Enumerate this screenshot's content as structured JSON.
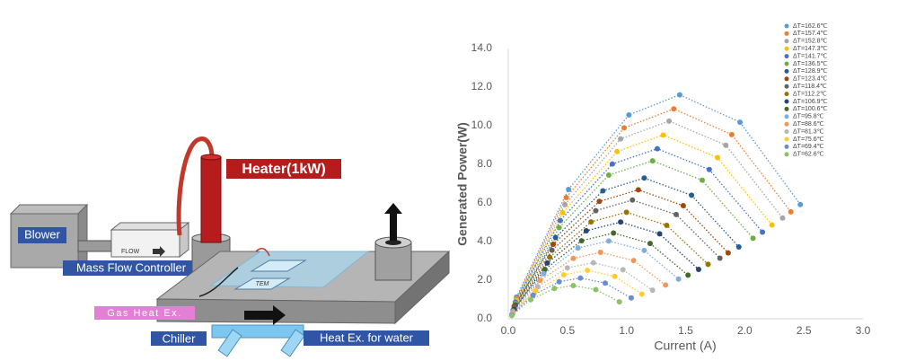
{
  "diagram": {
    "blower": "Blower",
    "flow": "FLOW",
    "heater": "Heater(1kW)",
    "mass_flow_controller": "Mass Flow Controller",
    "tem": "TEM",
    "gas_heat_ex": "Gas Heat Ex.",
    "chiller": "Chiller",
    "water_heat_ex": "Heat Ex. for water"
  },
  "chart_data": {
    "type": "scatter",
    "x_label": "Current (A)",
    "y_label": "Generated Power(W)",
    "xlim": [
      0,
      3
    ],
    "xticks": [
      {
        "value": 0,
        "label": "0.0"
      },
      0.5,
      {
        "value": 1,
        "label": "1.0"
      },
      1.5,
      {
        "value": 2,
        "label": "2.0"
      },
      2.5,
      {
        "value": 3,
        "label": "3.0"
      }
    ],
    "ylim": [
      0,
      14
    ],
    "yticks": [
      {
        "value": 0,
        "label": "0.0"
      },
      {
        "value": 2,
        "label": "2.0"
      },
      {
        "value": 4,
        "label": "4.0"
      },
      {
        "value": 6,
        "label": "6.0"
      },
      {
        "value": 8,
        "label": "8.0"
      },
      {
        "value": 10,
        "label": "10.0"
      },
      {
        "value": 12,
        "label": "12.0"
      },
      {
        "value": 14,
        "label": "14.0"
      }
    ],
    "grid": false,
    "legend": "top-right",
    "series": [
      {
        "name": "ΔT=162.6℃",
        "color": "#5b9bd5",
        "x": [
          0.07,
          0.51,
          1.02,
          1.45,
          1.96,
          2.47
        ],
        "values": [
          1.13,
          6.7,
          10.56,
          11.6,
          10.18,
          5.92
        ]
      },
      {
        "name": "ΔT=157.4℃",
        "color": "#ed7d31",
        "x": [
          0.07,
          0.49,
          0.98,
          1.4,
          1.89,
          2.39
        ],
        "values": [
          1.06,
          6.28,
          9.89,
          10.87,
          9.54,
          5.54
        ]
      },
      {
        "name": "ΔT=152.8℃",
        "color": "#a5a5a5",
        "x": [
          0.07,
          0.48,
          0.95,
          1.36,
          1.84,
          2.32
        ],
        "values": [
          1.0,
          5.91,
          9.32,
          10.24,
          8.99,
          5.22
        ]
      },
      {
        "name": "ΔT=147.3℃",
        "color": "#ffc000",
        "x": [
          0.07,
          0.46,
          0.92,
          1.31,
          1.77,
          2.23
        ],
        "values": [
          0.93,
          5.5,
          8.66,
          9.52,
          8.35,
          4.86
        ]
      },
      {
        "name": "ΔT=141.7℃",
        "color": "#4472c4",
        "x": [
          0.06,
          0.44,
          0.88,
          1.26,
          1.7,
          2.15
        ],
        "values": [
          0.86,
          5.09,
          8.02,
          8.81,
          7.73,
          4.49
        ]
      },
      {
        "name": "ΔT=136.5℃",
        "color": "#70ad47",
        "x": [
          0.06,
          0.43,
          0.85,
          1.22,
          1.64,
          2.07
        ],
        "values": [
          0.8,
          4.72,
          7.44,
          8.18,
          7.18,
          4.17
        ]
      },
      {
        "name": "ΔT=128.9℃",
        "color": "#255e91",
        "x": [
          0.06,
          0.4,
          0.8,
          1.15,
          1.55,
          1.95
        ],
        "values": [
          0.71,
          4.21,
          6.63,
          7.29,
          6.4,
          3.72
        ]
      },
      {
        "name": "ΔT=123.4℃",
        "color": "#9e480e",
        "x": [
          0.05,
          0.38,
          0.77,
          1.1,
          1.48,
          1.86
        ],
        "values": [
          0.65,
          3.86,
          6.08,
          6.68,
          5.86,
          3.41
        ]
      },
      {
        "name": "ΔT=118.4℃",
        "color": "#636363",
        "x": [
          0.05,
          0.37,
          0.74,
          1.05,
          1.42,
          1.79
        ],
        "values": [
          0.6,
          3.55,
          5.6,
          6.15,
          5.4,
          3.14
        ]
      },
      {
        "name": "ΔT=112.2℃",
        "color": "#997300",
        "x": [
          0.05,
          0.35,
          0.7,
          1.0,
          1.34,
          1.69
        ],
        "values": [
          0.54,
          3.19,
          5.02,
          5.52,
          4.84,
          2.82
        ]
      },
      {
        "name": "ΔT=106.9℃",
        "color": "#264478",
        "x": [
          0.05,
          0.33,
          0.66,
          0.95,
          1.28,
          1.61
        ],
        "values": [
          0.49,
          2.89,
          4.56,
          5.01,
          4.4,
          2.56
        ]
      },
      {
        "name": "ΔT=100.6℃",
        "color": "#43682b",
        "x": [
          0.04,
          0.31,
          0.62,
          0.89,
          1.2,
          1.52
        ],
        "values": [
          0.43,
          2.56,
          4.04,
          4.44,
          3.9,
          2.26
        ]
      },
      {
        "name": "ΔT=95.8℃",
        "color": "#7cafdd",
        "x": [
          0.04,
          0.3,
          0.59,
          0.85,
          1.15,
          1.44
        ],
        "values": [
          0.39,
          2.33,
          3.67,
          4.03,
          3.54,
          2.06
        ]
      },
      {
        "name": "ΔT=88.6℃",
        "color": "#f1975a",
        "x": [
          0.04,
          0.27,
          0.55,
          0.78,
          1.06,
          1.33
        ],
        "values": [
          0.34,
          1.99,
          3.13,
          3.44,
          3.02,
          1.75
        ]
      },
      {
        "name": "ΔT=81.3℃",
        "color": "#b7b7b7",
        "x": [
          0.04,
          0.25,
          0.5,
          0.72,
          0.97,
          1.22
        ],
        "values": [
          0.28,
          1.67,
          2.64,
          2.9,
          2.54,
          1.48
        ]
      },
      {
        "name": "ΔT=75.6℃",
        "color": "#ffcd33",
        "x": [
          0.03,
          0.23,
          0.47,
          0.67,
          0.9,
          1.13
        ],
        "values": [
          0.24,
          1.45,
          2.28,
          2.51,
          2.2,
          1.28
        ]
      },
      {
        "name": "ΔT=69.4℃",
        "color": "#698ed0",
        "x": [
          0.03,
          0.21,
          0.43,
          0.61,
          0.82,
          1.04
        ],
        "values": [
          0.21,
          1.22,
          1.92,
          2.11,
          1.85,
          1.08
        ]
      },
      {
        "name": "ΔT=62.6℃",
        "color": "#8cc168",
        "x": [
          0.03,
          0.19,
          0.39,
          0.55,
          0.74,
          0.94
        ],
        "values": [
          0.17,
          0.99,
          1.57,
          1.72,
          1.51,
          0.88
        ]
      }
    ]
  }
}
